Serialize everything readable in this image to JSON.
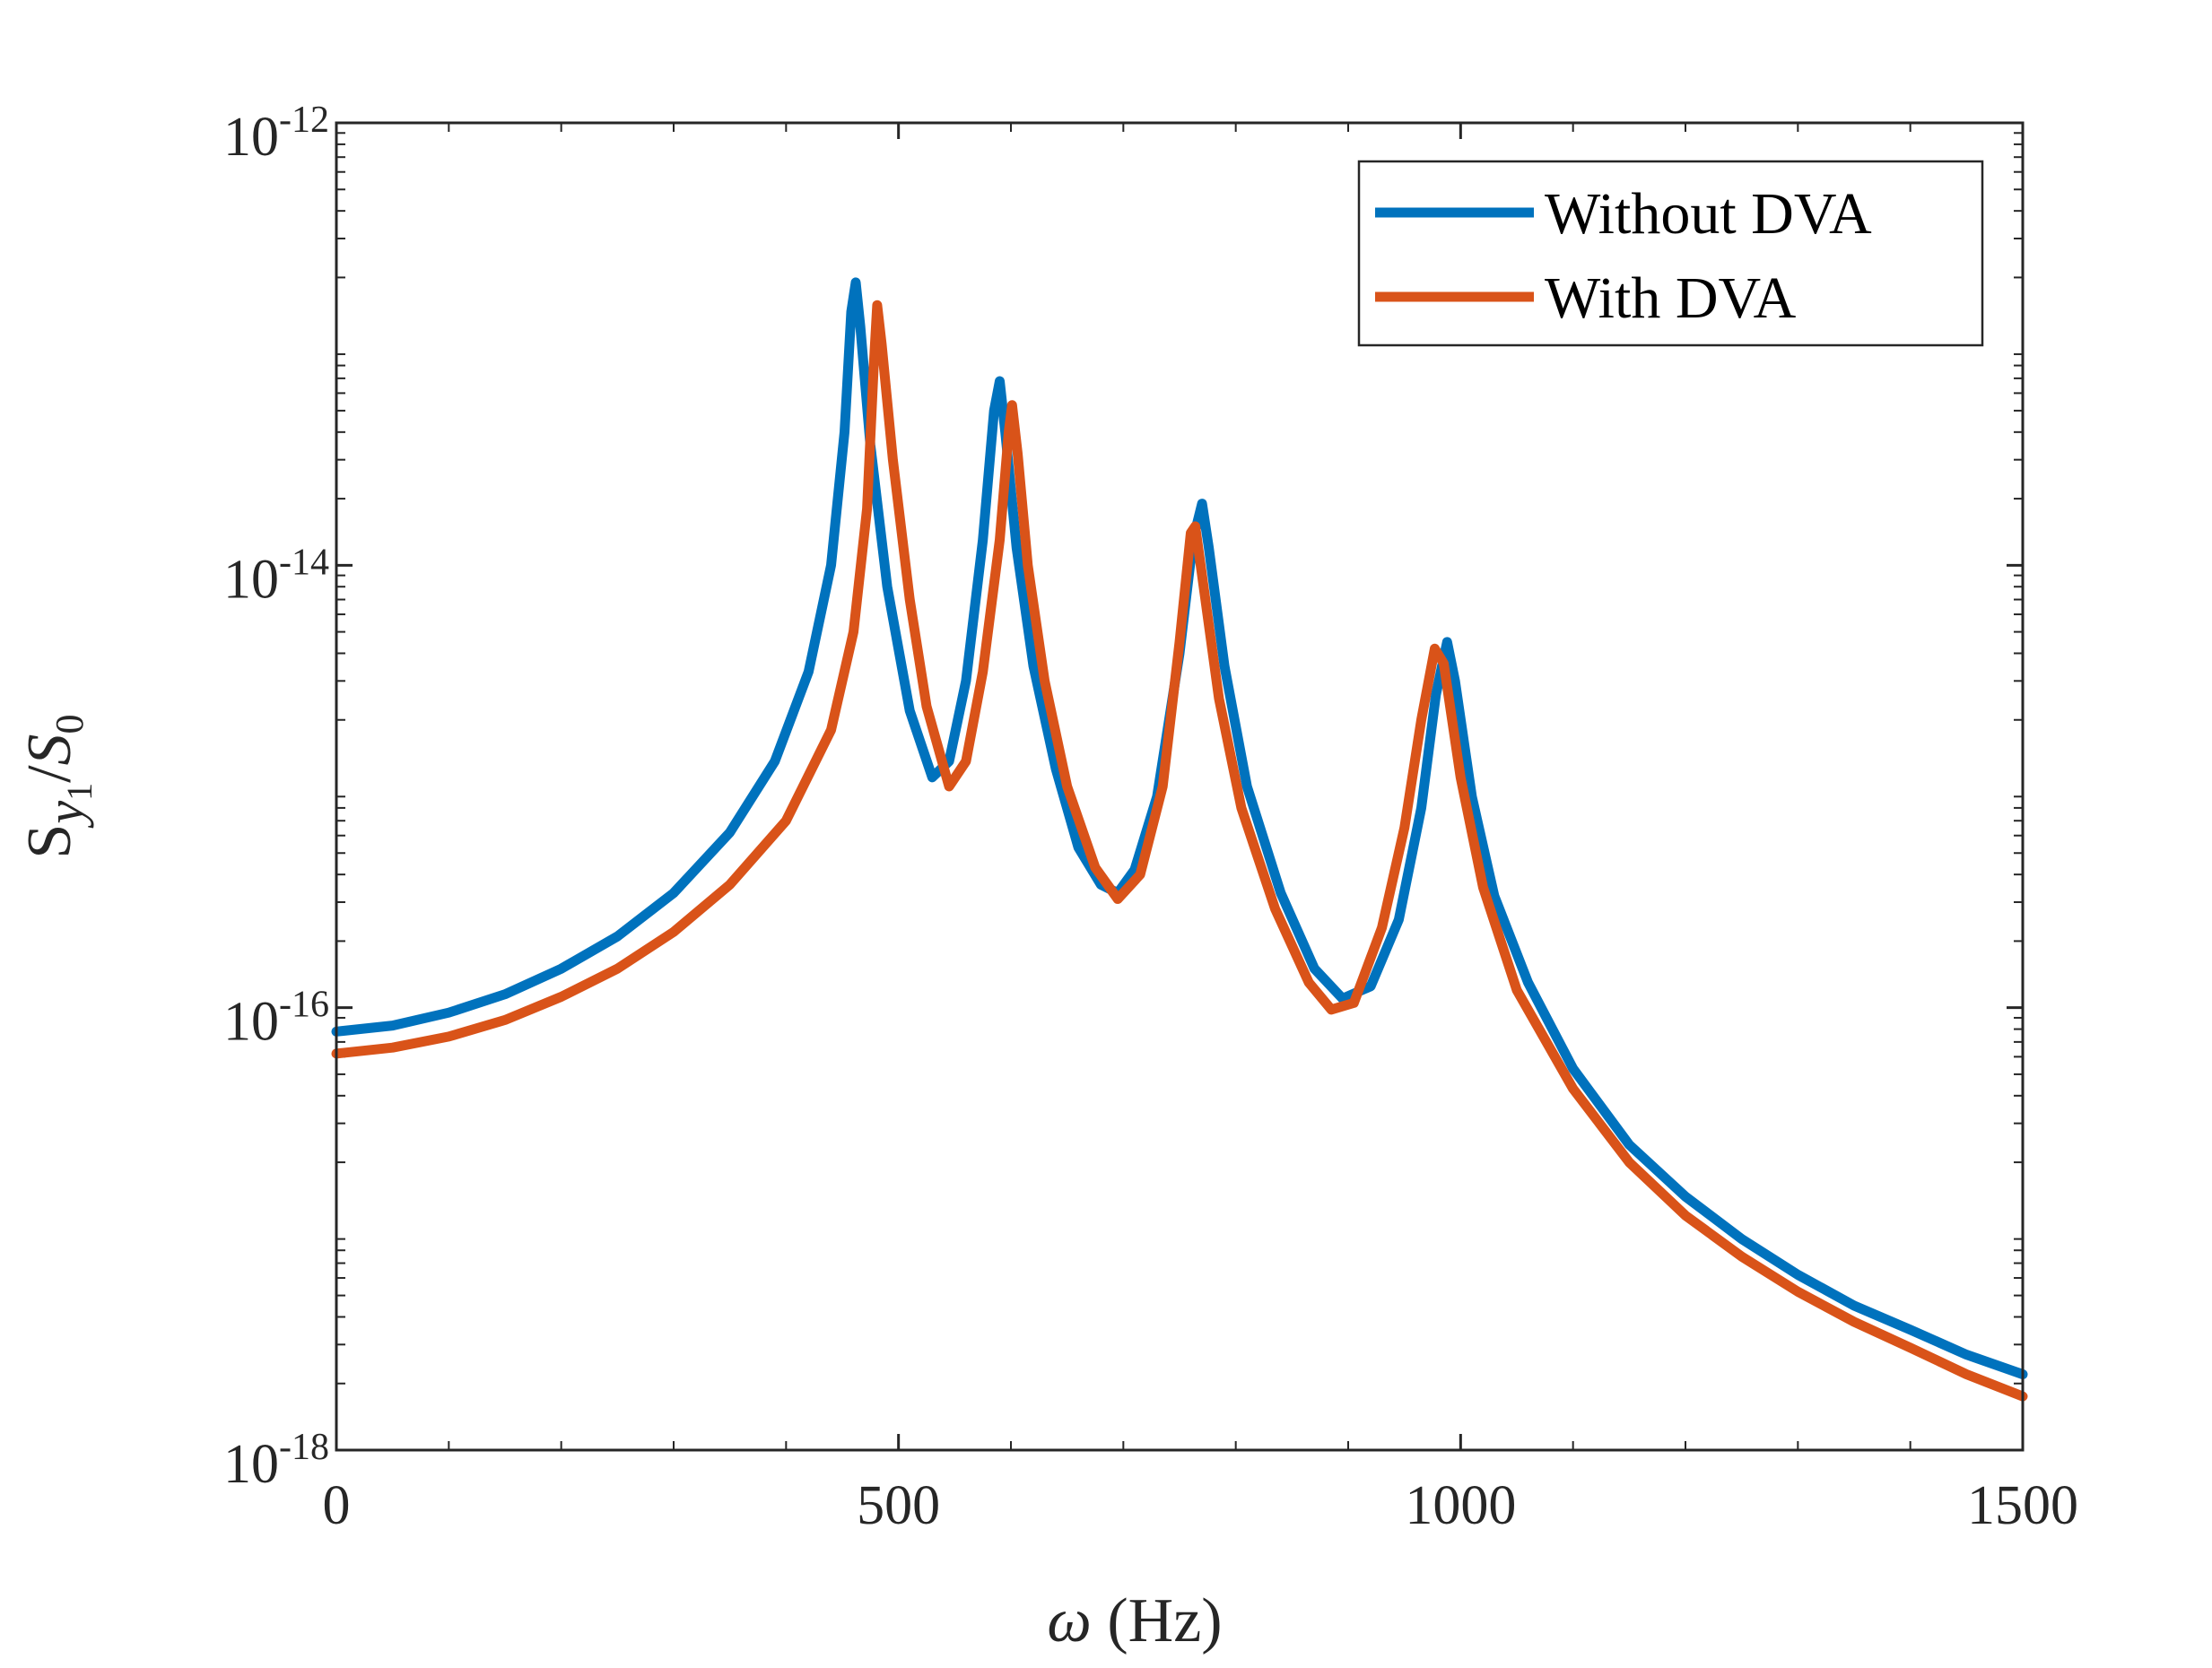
{
  "chart_data": {
    "type": "line",
    "x_axis": {
      "label_symbol": "ω",
      "label_unit": " (Hz)",
      "range": [
        0,
        1500
      ],
      "ticks": [
        0,
        500,
        1000,
        1500
      ],
      "tick_labels": [
        "0",
        "500",
        "1000",
        "1500"
      ]
    },
    "y_axis": {
      "scale": "log",
      "label_main": "S",
      "label_sub1": "y",
      "label_sub2": "1",
      "label_slash": "/",
      "label_den": "S",
      "label_den_sub": "0",
      "range": [
        1e-18,
        1e-12
      ],
      "ticks": [
        {
          "base": "10",
          "exp": "-12",
          "value": 1e-12
        },
        {
          "base": "10",
          "exp": "-14",
          "value": 1e-14
        },
        {
          "base": "10",
          "exp": "-16",
          "value": 1e-16
        },
        {
          "base": "10",
          "exp": "-18",
          "value": 1e-18
        }
      ]
    },
    "grid": false,
    "legend_position": "top-right",
    "series": [
      {
        "name": "Without DVA",
        "color": "#0072BD",
        "points": [
          [
            0,
            7.8e-17
          ],
          [
            50,
            8.3e-17
          ],
          [
            100,
            9.5e-17
          ],
          [
            150,
            1.15e-16
          ],
          [
            200,
            1.5e-16
          ],
          [
            250,
            2.1e-16
          ],
          [
            300,
            3.3e-16
          ],
          [
            350,
            6.2e-16
          ],
          [
            390,
            1.3e-15
          ],
          [
            420,
            3.3e-15
          ],
          [
            440,
            1e-14
          ],
          [
            452,
            4e-14
          ],
          [
            458,
            1.4e-13
          ],
          [
            462,
            1.9e-13
          ],
          [
            466,
            1.2e-13
          ],
          [
            475,
            3.5e-14
          ],
          [
            490,
            8e-15
          ],
          [
            510,
            2.2e-15
          ],
          [
            530,
            1.1e-15
          ],
          [
            545,
            1.3e-15
          ],
          [
            560,
            3e-15
          ],
          [
            575,
            1.3e-14
          ],
          [
            585,
            5e-14
          ],
          [
            590,
            6.8e-14
          ],
          [
            595,
            4e-14
          ],
          [
            605,
            1.2e-14
          ],
          [
            620,
            3.5e-15
          ],
          [
            640,
            1.2e-15
          ],
          [
            660,
            5.3e-16
          ],
          [
            680,
            3.6e-16
          ],
          [
            695,
            3.3e-16
          ],
          [
            710,
            4.2e-16
          ],
          [
            730,
            9e-16
          ],
          [
            750,
            4e-15
          ],
          [
            762,
            1.3e-14
          ],
          [
            770,
            1.9e-14
          ],
          [
            776,
            1.2e-14
          ],
          [
            790,
            3.5e-15
          ],
          [
            810,
            1e-15
          ],
          [
            840,
            3.3e-16
          ],
          [
            870,
            1.5e-16
          ],
          [
            895,
            1.1e-16
          ],
          [
            920,
            1.25e-16
          ],
          [
            945,
            2.5e-16
          ],
          [
            965,
            8e-16
          ],
          [
            978,
            2.6e-15
          ],
          [
            988,
            4.5e-15
          ],
          [
            995,
            3e-15
          ],
          [
            1010,
            9e-16
          ],
          [
            1030,
            3.2e-16
          ],
          [
            1060,
            1.3e-16
          ],
          [
            1100,
            5.3e-17
          ],
          [
            1150,
            2.4e-17
          ],
          [
            1200,
            1.4e-17
          ],
          [
            1250,
            9e-18
          ],
          [
            1300,
            6.2e-18
          ],
          [
            1350,
            4.5e-18
          ],
          [
            1400,
            3.5e-18
          ],
          [
            1450,
            2.7e-18
          ],
          [
            1500,
            2.2e-18
          ]
        ]
      },
      {
        "name": "With DVA",
        "color": "#D95319",
        "points": [
          [
            0,
            6.2e-17
          ],
          [
            50,
            6.6e-17
          ],
          [
            100,
            7.4e-17
          ],
          [
            150,
            8.8e-17
          ],
          [
            200,
            1.12e-16
          ],
          [
            250,
            1.5e-16
          ],
          [
            300,
            2.2e-16
          ],
          [
            350,
            3.6e-16
          ],
          [
            400,
            7e-16
          ],
          [
            440,
            1.8e-15
          ],
          [
            460,
            5e-15
          ],
          [
            472,
            1.8e-14
          ],
          [
            478,
            8e-14
          ],
          [
            481,
            1.5e-13
          ],
          [
            485,
            1e-13
          ],
          [
            495,
            3e-14
          ],
          [
            510,
            7e-15
          ],
          [
            525,
            2.3e-15
          ],
          [
            545,
            1e-15
          ],
          [
            560,
            1.3e-15
          ],
          [
            575,
            3.3e-15
          ],
          [
            590,
            1.3e-14
          ],
          [
            598,
            4e-14
          ],
          [
            601,
            5.3e-14
          ],
          [
            606,
            3.2e-14
          ],
          [
            615,
            1e-14
          ],
          [
            630,
            3e-15
          ],
          [
            650,
            1e-15
          ],
          [
            675,
            4.3e-16
          ],
          [
            695,
            3.1e-16
          ],
          [
            715,
            4e-16
          ],
          [
            735,
            1e-15
          ],
          [
            750,
            4.5e-15
          ],
          [
            760,
            1.4e-14
          ],
          [
            764,
            1.5e-14
          ],
          [
            770,
            9e-15
          ],
          [
            785,
            2.5e-15
          ],
          [
            805,
            8e-16
          ],
          [
            835,
            2.8e-16
          ],
          [
            865,
            1.3e-16
          ],
          [
            885,
            9.8e-17
          ],
          [
            905,
            1.05e-16
          ],
          [
            930,
            2.3e-16
          ],
          [
            950,
            6.5e-16
          ],
          [
            965,
            2e-15
          ],
          [
            977,
            4.2e-15
          ],
          [
            985,
            3.6e-15
          ],
          [
            1000,
            1.1e-15
          ],
          [
            1020,
            3.5e-16
          ],
          [
            1050,
            1.2e-16
          ],
          [
            1100,
            4.3e-17
          ],
          [
            1150,
            2e-17
          ],
          [
            1200,
            1.15e-17
          ],
          [
            1250,
            7.5e-18
          ],
          [
            1300,
            5.2e-18
          ],
          [
            1350,
            3.8e-18
          ],
          [
            1400,
            2.9e-18
          ],
          [
            1450,
            2.2e-18
          ],
          [
            1500,
            1.75e-18
          ]
        ]
      }
    ]
  }
}
